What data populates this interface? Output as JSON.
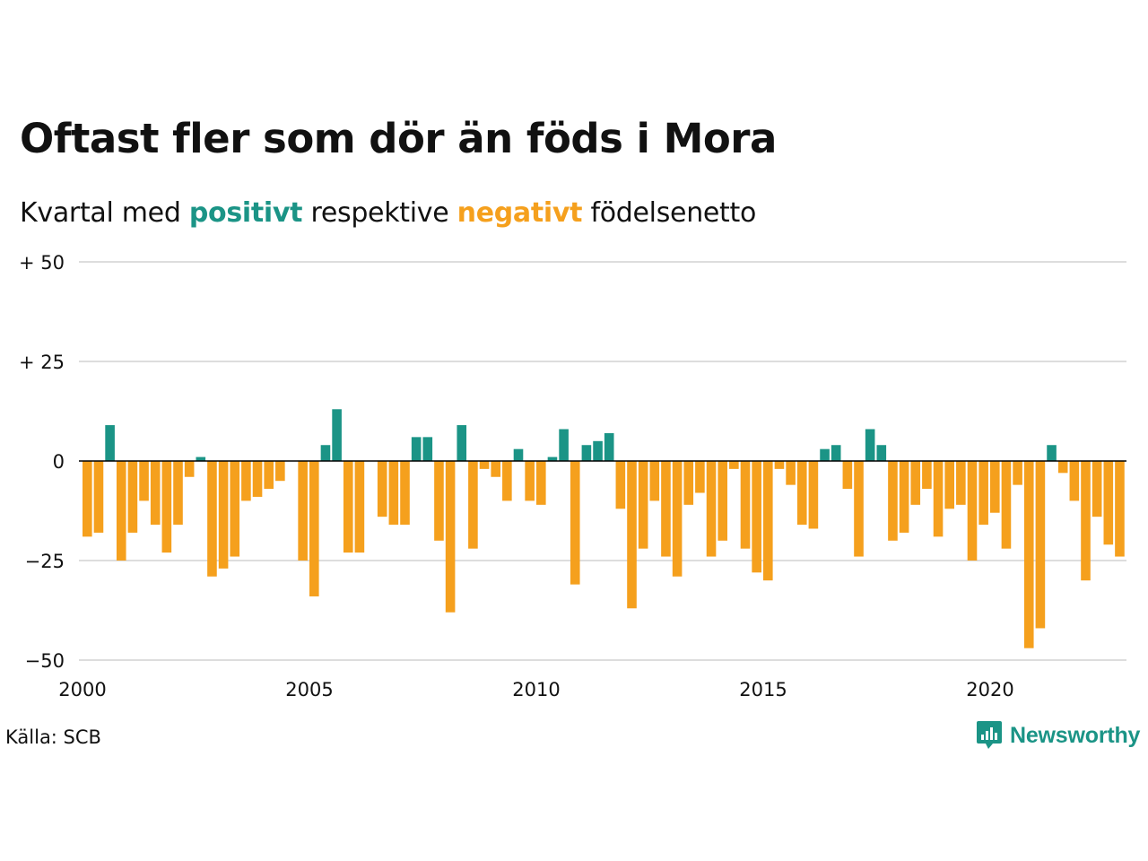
{
  "title": "Oftast fler som dör än föds i Mora",
  "subtitle": {
    "prefix": "Kvartal med",
    "positive_word": "positivt",
    "middle": "respektive",
    "negative_word": "negativt",
    "suffix": "födelsenetto"
  },
  "source": "Källa: SCB",
  "logo": {
    "text": "Newsworthy",
    "icon": "newsworthy-chat-bar-icon"
  },
  "colors": {
    "positive": "#1b9486",
    "negative": "#f5a01d",
    "grid": "#dddddd",
    "axis": "#000000"
  },
  "chart_data": {
    "type": "bar",
    "title": "Oftast fler som dör än föds i Mora",
    "subtitle": "Kvartal med positivt respektive negativt födelsenetto",
    "xlabel": "",
    "ylabel": "",
    "ylim": [
      -50,
      50
    ],
    "yticks": [
      50,
      25,
      0,
      -25,
      -50
    ],
    "ytick_labels": [
      "+ 50",
      "+ 25",
      "0",
      "−25",
      "−50"
    ],
    "xticks": [
      "2000",
      "2005",
      "2010",
      "2015",
      "2020"
    ],
    "grid": true,
    "first_quarter": "2000 Q1",
    "values": [
      -19,
      -18,
      9,
      -25,
      -18,
      -10,
      -16,
      -23,
      -16,
      -4,
      1,
      -29,
      -27,
      -24,
      -10,
      -9,
      -7,
      -5,
      0,
      -25,
      -34,
      4,
      13,
      -23,
      -23,
      0,
      -14,
      -16,
      -16,
      6,
      6,
      -20,
      -38,
      9,
      -22,
      -2,
      -4,
      -10,
      3,
      -10,
      -11,
      1,
      8,
      -31,
      4,
      5,
      7,
      -12,
      -37,
      -22,
      -10,
      -24,
      -29,
      -11,
      -8,
      -24,
      -20,
      -2,
      -22,
      -28,
      -30,
      -2,
      -6,
      -16,
      -17,
      3,
      4,
      -7,
      -24,
      8,
      4,
      -20,
      -18,
      -11,
      -7,
      -19,
      -12,
      -11,
      -25,
      -16,
      -13,
      -22,
      -6,
      -47,
      -42,
      4,
      -3,
      -10,
      -30,
      -14,
      -21,
      -24
    ]
  }
}
